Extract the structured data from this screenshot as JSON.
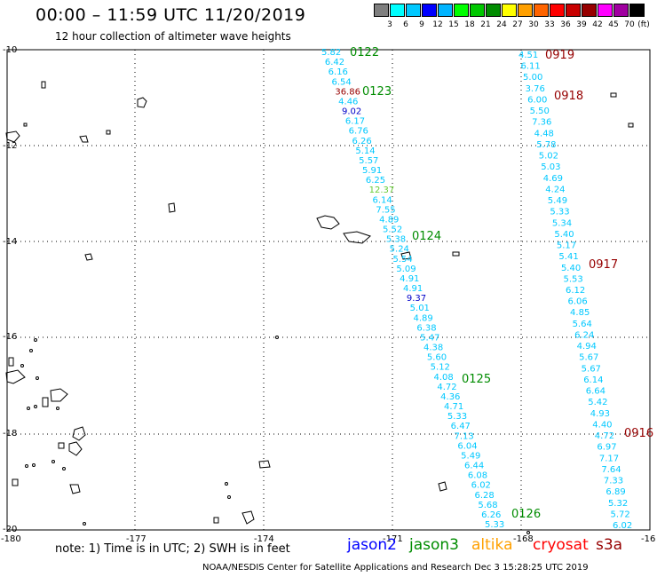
{
  "header": {
    "title": "00:00 – 11:59 UTC 11/20/2019",
    "subtitle": "12 hour collection of altimeter wave heights"
  },
  "scale": {
    "unit": "(ft)",
    "colors": [
      "#7f7f7f",
      "#00ffff",
      "#00c8ff",
      "#0000ff",
      "#00b4ff",
      "#00ff00",
      "#00c800",
      "#008c00",
      "#ffff00",
      "#ffa000",
      "#ff6400",
      "#ff0000",
      "#c80000",
      "#960000",
      "#ff00ff",
      "#a000a0",
      "#000000"
    ],
    "labels": [
      "3",
      "6",
      "9",
      "12",
      "15",
      "18",
      "21",
      "24",
      "27",
      "30",
      "33",
      "36",
      "39",
      "42",
      "45",
      "70"
    ]
  },
  "axes": {
    "lat": [
      "-10",
      "-12",
      "-14",
      "-16",
      "-18",
      "-20"
    ],
    "lon": [
      "-180",
      "-177",
      "-174",
      "-171",
      "-168",
      "-16"
    ]
  },
  "passes": [
    {
      "label": "0122",
      "color": "#008c00"
    },
    {
      "label": "0123",
      "color": "#008c00"
    },
    {
      "label": "0124",
      "color": "#008c00"
    },
    {
      "label": "0125",
      "color": "#008c00"
    },
    {
      "label": "0126",
      "color": "#008c00"
    },
    {
      "label": "0919",
      "color": "#960000"
    },
    {
      "label": "0918",
      "color": "#960000"
    },
    {
      "label": "0917",
      "color": "#960000"
    },
    {
      "label": "0916",
      "color": "#960000"
    }
  ],
  "track_a": [
    {
      "v": "5.82",
      "c": "#00c8ff"
    },
    {
      "v": "6.42",
      "c": "#00c8ff"
    },
    {
      "v": "6.16",
      "c": "#00c8ff"
    },
    {
      "v": "6.54",
      "c": "#00c8ff"
    },
    {
      "v": "36.86",
      "c": "#960000"
    },
    {
      "v": "4.46",
      "c": "#00c8ff"
    },
    {
      "v": "9.02",
      "c": "#0000c8"
    },
    {
      "v": "6.17",
      "c": "#00c8ff"
    },
    {
      "v": "6.76",
      "c": "#00c8ff"
    },
    {
      "v": "6.26",
      "c": "#00c8ff"
    },
    {
      "v": "5.14",
      "c": "#00c8ff"
    },
    {
      "v": "5.57",
      "c": "#00c8ff"
    },
    {
      "v": "5.91",
      "c": "#00c8ff"
    },
    {
      "v": "6.25",
      "c": "#00c8ff"
    },
    {
      "v": "12.37",
      "c": "#66cc33"
    },
    {
      "v": "6.14",
      "c": "#00c8ff"
    },
    {
      "v": "7.55",
      "c": "#00c8ff"
    },
    {
      "v": "4.89",
      "c": "#00c8ff"
    },
    {
      "v": "5.52",
      "c": "#00c8ff"
    },
    {
      "v": "5.38",
      "c": "#00c8ff"
    },
    {
      "v": "5.24",
      "c": "#00c8ff"
    },
    {
      "v": "5.54",
      "c": "#00c8ff"
    },
    {
      "v": "5.09",
      "c": "#00c8ff"
    },
    {
      "v": "4.91",
      "c": "#00c8ff"
    },
    {
      "v": "4.91",
      "c": "#00c8ff"
    },
    {
      "v": "9.37",
      "c": "#0000c8"
    },
    {
      "v": "5.01",
      "c": "#00c8ff"
    },
    {
      "v": "4.89",
      "c": "#00c8ff"
    },
    {
      "v": "6.38",
      "c": "#00c8ff"
    },
    {
      "v": "5.47",
      "c": "#00c8ff"
    },
    {
      "v": "4.38",
      "c": "#00c8ff"
    },
    {
      "v": "5.60",
      "c": "#00c8ff"
    },
    {
      "v": "5.12",
      "c": "#00c8ff"
    },
    {
      "v": "4.08",
      "c": "#00c8ff"
    },
    {
      "v": "4.72",
      "c": "#00c8ff"
    },
    {
      "v": "4.36",
      "c": "#00c8ff"
    },
    {
      "v": "4.71",
      "c": "#00c8ff"
    },
    {
      "v": "5.33",
      "c": "#00c8ff"
    },
    {
      "v": "6.47",
      "c": "#00c8ff"
    },
    {
      "v": "7.13",
      "c": "#00c8ff"
    },
    {
      "v": "6.04",
      "c": "#00c8ff"
    },
    {
      "v": "5.49",
      "c": "#00c8ff"
    },
    {
      "v": "6.44",
      "c": "#00c8ff"
    },
    {
      "v": "6.08",
      "c": "#00c8ff"
    },
    {
      "v": "6.02",
      "c": "#00c8ff"
    },
    {
      "v": "6.28",
      "c": "#00c8ff"
    },
    {
      "v": "5.68",
      "c": "#00c8ff"
    },
    {
      "v": "6.26",
      "c": "#00c8ff"
    },
    {
      "v": "5.33",
      "c": "#00c8ff"
    }
  ],
  "track_b": [
    {
      "v": "4.51",
      "c": "#00c8ff"
    },
    {
      "v": "6.11",
      "c": "#00c8ff"
    },
    {
      "v": "5.00",
      "c": "#00c8ff"
    },
    {
      "v": "3.76",
      "c": "#00c8ff"
    },
    {
      "v": "6.00",
      "c": "#00c8ff"
    },
    {
      "v": "5.50",
      "c": "#00c8ff"
    },
    {
      "v": "7.36",
      "c": "#00c8ff"
    },
    {
      "v": "4.48",
      "c": "#00c8ff"
    },
    {
      "v": "5.78",
      "c": "#00c8ff"
    },
    {
      "v": "5.02",
      "c": "#00c8ff"
    },
    {
      "v": "5.03",
      "c": "#00c8ff"
    },
    {
      "v": "4.69",
      "c": "#00c8ff"
    },
    {
      "v": "4.24",
      "c": "#00c8ff"
    },
    {
      "v": "5.49",
      "c": "#00c8ff"
    },
    {
      "v": "5.33",
      "c": "#00c8ff"
    },
    {
      "v": "5.34",
      "c": "#00c8ff"
    },
    {
      "v": "5.40",
      "c": "#00c8ff"
    },
    {
      "v": "5.17",
      "c": "#00c8ff"
    },
    {
      "v": "5.41",
      "c": "#00c8ff"
    },
    {
      "v": "5.40",
      "c": "#00c8ff"
    },
    {
      "v": "5.53",
      "c": "#00c8ff"
    },
    {
      "v": "6.12",
      "c": "#00c8ff"
    },
    {
      "v": "6.06",
      "c": "#00c8ff"
    },
    {
      "v": "4.85",
      "c": "#00c8ff"
    },
    {
      "v": "5.64",
      "c": "#00c8ff"
    },
    {
      "v": "6.24",
      "c": "#00c8ff"
    },
    {
      "v": "4.94",
      "c": "#00c8ff"
    },
    {
      "v": "5.67",
      "c": "#00c8ff"
    },
    {
      "v": "5.67",
      "c": "#00c8ff"
    },
    {
      "v": "6.14",
      "c": "#00c8ff"
    },
    {
      "v": "6.64",
      "c": "#00c8ff"
    },
    {
      "v": "5.42",
      "c": "#00c8ff"
    },
    {
      "v": "4.93",
      "c": "#00c8ff"
    },
    {
      "v": "4.40",
      "c": "#00c8ff"
    },
    {
      "v": "4.72",
      "c": "#00c8ff"
    },
    {
      "v": "6.97",
      "c": "#00c8ff"
    },
    {
      "v": "7.17",
      "c": "#00c8ff"
    },
    {
      "v": "7.64",
      "c": "#00c8ff"
    },
    {
      "v": "7.33",
      "c": "#00c8ff"
    },
    {
      "v": "6.89",
      "c": "#00c8ff"
    },
    {
      "v": "5.32",
      "c": "#00c8ff"
    },
    {
      "v": "5.72",
      "c": "#00c8ff"
    },
    {
      "v": "6.02",
      "c": "#00c8ff"
    }
  ],
  "note": "note: 1) Time is in UTC; 2) SWH is in feet",
  "legend": [
    {
      "name": "jason2",
      "color": "#0000ff"
    },
    {
      "name": "jason3",
      "color": "#008c00"
    },
    {
      "name": "altika",
      "color": "#ffa000"
    },
    {
      "name": "cryosat",
      "color": "#ff0000"
    },
    {
      "name": "s3a",
      "color": "#960000"
    }
  ],
  "footer": "NOAA/NESDIS Center for Satellite Applications and Research    Dec  3 15:28:25 UTC 2019"
}
